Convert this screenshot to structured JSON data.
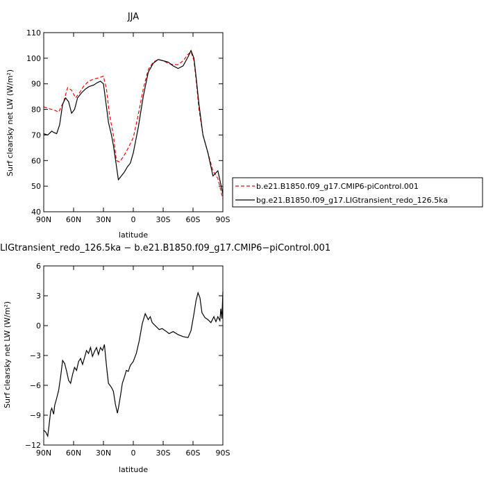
{
  "chart_data": [
    {
      "type": "line",
      "title": "JJA",
      "xlabel": "latitude",
      "ylabel": "Surf clearsky net LW (W/m²)",
      "xlim": [
        90,
        -90
      ],
      "ylim": [
        40,
        110
      ],
      "x_tick_values": [
        90,
        60,
        30,
        0,
        -30,
        -60,
        -90
      ],
      "x_tick_labels": [
        "90N",
        "60N",
        "30N",
        "0",
        "30S",
        "60S",
        "90S"
      ],
      "y_tick_values": [
        40,
        50,
        60,
        70,
        80,
        90,
        100,
        110
      ],
      "y_tick_labels": [
        "40",
        "50",
        "60",
        "70",
        "80",
        "90",
        "100",
        "110"
      ],
      "grid": false,
      "legend_position": "right",
      "series": [
        {
          "name": "b.e21.B1850.f09_g17.CMIP6-piControl.001",
          "color": "#ff0000",
          "dash": "dashed",
          "x": [
            90,
            85,
            80,
            75,
            70,
            66,
            62,
            58,
            54,
            50,
            45,
            40,
            35,
            30,
            27,
            24,
            20,
            17,
            14,
            10,
            5,
            0,
            -5,
            -10,
            -15,
            -20,
            -25,
            -30,
            -35,
            -40,
            -45,
            -50,
            -55,
            -58,
            -61,
            -63,
            -66,
            -70,
            -75,
            -80,
            -85,
            -90
          ],
          "y": [
            81,
            80.3,
            79.8,
            79,
            83,
            88.5,
            87.5,
            84.5,
            86.5,
            89,
            91,
            91.8,
            92.3,
            93,
            88,
            78,
            70,
            60,
            59.5,
            61.5,
            65,
            69,
            78,
            88,
            95.5,
            98.5,
            99.5,
            99,
            98,
            97.5,
            97.5,
            99,
            101.5,
            102.5,
            99,
            92,
            80,
            70,
            63,
            56,
            53,
            45
          ]
        },
        {
          "name": "bg.e21.B1850.f09_g17.LIGtransient_redo_126.5ka",
          "color": "#000000",
          "dash": "solid",
          "x": [
            90,
            86,
            82,
            80,
            77,
            74,
            71,
            68,
            65,
            62,
            59,
            56,
            52,
            48,
            44,
            40,
            36,
            33,
            30,
            28,
            25,
            22,
            20,
            17,
            15,
            12,
            9,
            6,
            3,
            0,
            -5,
            -10,
            -15,
            -20,
            -25,
            -30,
            -35,
            -40,
            -45,
            -50,
            -55,
            -58,
            -61,
            -63,
            -66,
            -70,
            -75,
            -80,
            -85,
            -90
          ],
          "y": [
            70.5,
            70,
            71.5,
            71,
            70.5,
            74,
            82,
            84.5,
            83,
            78.5,
            80,
            84.5,
            86.5,
            88,
            89,
            89.5,
            90.5,
            91,
            90,
            84,
            75,
            70,
            66,
            58,
            52.5,
            54,
            55.5,
            57.5,
            59,
            63,
            73,
            85,
            94.5,
            98,
            99.5,
            99,
            98.5,
            97,
            96,
            97,
            100.5,
            103,
            100,
            93,
            82,
            70,
            63,
            54,
            56,
            47
          ]
        }
      ]
    },
    {
      "type": "line",
      "title": "LIGtransient_redo_126.5ka − b.e21.B1850.f09_g17.CMIP6−piControl.001",
      "xlabel": "latitude",
      "ylabel": "Surf clearsky net LW (W/m²)",
      "xlim": [
        90,
        -90
      ],
      "ylim": [
        -12,
        6
      ],
      "x_tick_values": [
        90,
        60,
        30,
        0,
        -30,
        -60,
        -90
      ],
      "x_tick_labels": [
        "90N",
        "60N",
        "30N",
        "0",
        "30S",
        "60S",
        "90S"
      ],
      "y_tick_values": [
        -12,
        -9,
        -6,
        -3,
        0,
        3,
        6
      ],
      "y_tick_labels": [
        "−12",
        "−9",
        "−6",
        "−3",
        "0",
        "3",
        "6"
      ],
      "grid": false,
      "series": [
        {
          "color": "#000000",
          "dash": "solid",
          "x": [
            90,
            88,
            86,
            85,
            83,
            82,
            80,
            79,
            77,
            75,
            73,
            71,
            69,
            67,
            65,
            63,
            61,
            59,
            57,
            55,
            53,
            51,
            49,
            47,
            45,
            43,
            41,
            39,
            37,
            35,
            33,
            31,
            29,
            27,
            25,
            22,
            20,
            18,
            16,
            15,
            13,
            11,
            9,
            7,
            5,
            3,
            0,
            -3,
            -6,
            -9,
            -12,
            -15,
            -17,
            -19,
            -21,
            -23,
            -26,
            -29,
            -32,
            -36,
            -40,
            -45,
            -50,
            -55,
            -58,
            -61,
            -63,
            -65,
            -67,
            -69,
            -72,
            -75,
            -78,
            -81,
            -83,
            -85,
            -87,
            -88,
            -89,
            -90
          ],
          "y": [
            -10.5,
            -10.7,
            -11.1,
            -10.3,
            -8.6,
            -8.3,
            -8.9,
            -8,
            -7.3,
            -6.5,
            -5.1,
            -3.5,
            -3.8,
            -4.6,
            -5.5,
            -5.8,
            -4.9,
            -4.2,
            -4.5,
            -3.6,
            -3.3,
            -3.9,
            -3.2,
            -2.5,
            -2.8,
            -2.2,
            -3.1,
            -2.6,
            -2.2,
            -2.9,
            -2.2,
            -2.5,
            -1.9,
            -4,
            -5.8,
            -6.2,
            -6.6,
            -7.9,
            -8.8,
            -8.3,
            -7.1,
            -5.8,
            -5.2,
            -4.5,
            -4.6,
            -4,
            -3.6,
            -2.8,
            -1.5,
            0.2,
            1.2,
            0.6,
            0.9,
            0.3,
            0.1,
            -0.1,
            -0.4,
            -0.3,
            -0.5,
            -0.8,
            -0.6,
            -0.9,
            -1.1,
            -1.2,
            -0.5,
            1.2,
            2.5,
            3.3,
            2.8,
            1.3,
            0.8,
            0.6,
            0.3,
            0.9,
            0.4,
            0.9,
            0.5,
            1.7,
            0.7,
            3.4
          ]
        }
      ]
    }
  ]
}
